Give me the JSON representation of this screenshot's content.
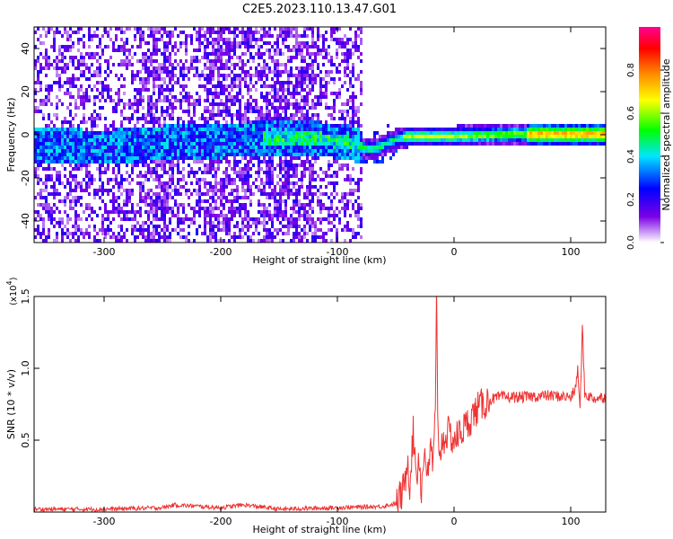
{
  "title": "C2E5.2023.110.13.47.G01",
  "chart_data": [
    {
      "type": "heatmap",
      "xlabel": "Height of straight line (km)",
      "ylabel": "Frequency (Hz)",
      "xlim": [
        -360,
        130
      ],
      "ylim": [
        -50,
        50
      ],
      "xticks": [
        -300,
        -200,
        -100,
        0,
        100
      ],
      "yticks": [
        -40,
        -20,
        0,
        20,
        40
      ],
      "grid": false,
      "ridge": {
        "x": [
          -360,
          -300,
          -250,
          -200,
          -160,
          -120,
          -90,
          -75,
          -65,
          -55,
          -40,
          -20,
          0,
          50,
          100,
          130
        ],
        "freq": [
          -4,
          -5,
          -3,
          -2,
          -1,
          -1,
          -3,
          -6,
          -5,
          -2,
          0,
          0,
          0,
          1,
          1,
          1
        ]
      },
      "colorbar": {
        "label": "Normalized spectral amplitude",
        "range": [
          0,
          1
        ],
        "ticks": [
          "0.0",
          "0.2",
          "0.4",
          "0.6",
          "0.8"
        ],
        "colors": [
          "#ffffff",
          "#7b00e6",
          "#0000ff",
          "#00e5ff",
          "#00ff00",
          "#ffff00",
          "#ff8c00",
          "#ff0000",
          "#ff0090"
        ]
      }
    },
    {
      "type": "line",
      "xlabel": "Height of straight line (km)",
      "ylabel": "SNR (10 * v/v)",
      "scale_label": "(x10",
      "scale_exp": "4",
      "scale_close": ")",
      "xlim": [
        -360,
        130
      ],
      "ylim": [
        0,
        1.5
      ],
      "xticks": [
        -300,
        -200,
        -100,
        0,
        100
      ],
      "yticks": [
        0.5,
        1.0,
        1.5
      ],
      "ytick_labels": [
        "0.5",
        "1.0",
        "1.5"
      ],
      "grid": false,
      "color": "#ee3333",
      "series": [
        {
          "x": [
            -360,
            -300,
            -250,
            -240,
            -200,
            -180,
            -150,
            -100,
            -60,
            -50,
            -45,
            -42,
            -40,
            -38,
            -35,
            -32,
            -30,
            -28,
            -25,
            -22,
            -20,
            -18,
            -16,
            -15,
            -14,
            -12,
            -10,
            -5,
            0,
            10,
            20,
            30,
            40,
            60,
            80,
            100,
            104,
            106,
            108,
            110,
            112,
            120,
            130
          ],
          "y": [
            0.02,
            0.02,
            0.03,
            0.05,
            0.03,
            0.05,
            0.02,
            0.03,
            0.04,
            0.06,
            0.12,
            0.2,
            0.4,
            0.2,
            0.55,
            0.25,
            0.4,
            0.15,
            0.45,
            0.2,
            0.5,
            0.3,
            0.7,
            1.5,
            0.6,
            0.4,
            0.5,
            0.55,
            0.5,
            0.6,
            0.72,
            0.78,
            0.8,
            0.8,
            0.81,
            0.8,
            0.85,
            1.0,
            0.7,
            1.3,
            0.82,
            0.79,
            0.8
          ]
        }
      ]
    }
  ]
}
